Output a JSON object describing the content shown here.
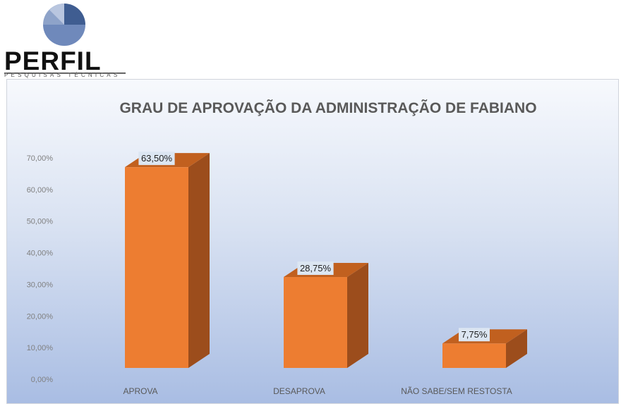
{
  "logo": {
    "name": "PERFIL",
    "tagline": "PESQUISAS TÉCNICAS",
    "icon": "pie-chart-icon",
    "colors": [
      "#3f5d91",
      "#6f89bb",
      "#a9bad8"
    ]
  },
  "chart_data": {
    "type": "bar",
    "style": "3d-column",
    "title": "GRAU DE APROVAÇÃO DA ADMINISTRAÇÃO DE FABIANO",
    "xlabel": "",
    "ylabel": "",
    "categories": [
      "APROVA",
      "DESAPROVA",
      "NÃO SABE/SEM RESTOSTA"
    ],
    "values": [
      63.5,
      28.75,
      7.75
    ],
    "data_labels": [
      "63,50%",
      "28,75%",
      "7,75%"
    ],
    "ylim": [
      0,
      70
    ],
    "yticks": [
      0,
      10,
      20,
      30,
      40,
      50,
      60,
      70
    ],
    "ytick_labels": [
      "0,00%",
      "10,00%",
      "20,00%",
      "30,00%",
      "40,00%",
      "50,00%",
      "60,00%",
      "70,00%"
    ],
    "grid": false,
    "legend": "none",
    "colors": {
      "bar_front": "#ed7d31",
      "bar_side": "#9c4d1c",
      "bar_top": "#c1601f",
      "tick_text": "#7f7f7f",
      "category_text": "#595959",
      "label_box": "#dce6f2"
    }
  }
}
